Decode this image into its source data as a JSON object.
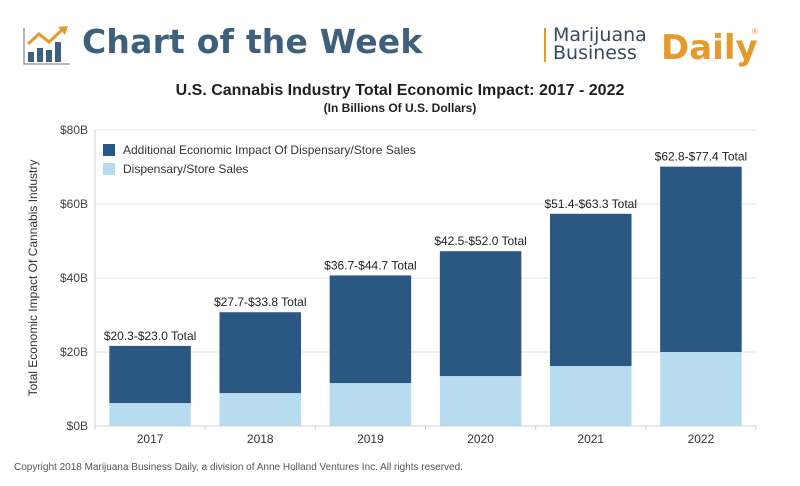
{
  "header": {
    "title": "Chart of the Week",
    "logo_icon": "rising-bar-chart-icon",
    "brand": {
      "line1": "Marijuana",
      "line2": "Business",
      "daily": "Daily",
      "registered": "®",
      "accent_color": "#e59a2c",
      "text_color": "#3a4a5e"
    }
  },
  "footer": {
    "copyright": "Copyright 2018 Marijuana Business Daily, a division of Anne Holland Ventures Inc. All rights reserved."
  },
  "chart_data": {
    "type": "bar",
    "stacked": true,
    "title": "U.S. Cannabis Industry Total Economic Impact: 2017 - 2022",
    "subtitle": "(In Billions Of U.S. Dollars)",
    "xlabel": "",
    "ylabel": "Total Economic Impact Of Cannabis Industry",
    "categories": [
      "2017",
      "2018",
      "2019",
      "2020",
      "2021",
      "2022"
    ],
    "ylim": [
      0,
      80
    ],
    "yticks": [
      0,
      20,
      40,
      60,
      80
    ],
    "ytick_labels": [
      "$0B",
      "$20B",
      "$40B",
      "$60B",
      "$80B"
    ],
    "grid": true,
    "legend_position": "top-left",
    "series": [
      {
        "name": "Dispensary/Store Sales",
        "color": "#b7dcf0",
        "values": [
          6.2,
          8.9,
          11.6,
          13.5,
          16.2,
          20.0
        ]
      },
      {
        "name": "Additional Economic Impact Of Dispensary/Store Sales",
        "color": "#2b5883",
        "values": [
          15.45,
          21.85,
          29.1,
          33.75,
          41.15,
          50.1
        ]
      }
    ],
    "totals": [
      21.65,
      30.75,
      40.7,
      47.25,
      57.35,
      70.1
    ],
    "data_labels": [
      "$20.3-$23.0 Total",
      "$27.7-$33.8 Total",
      "$36.7-$44.7 Total",
      "$42.5-$52.0 Total",
      "$51.4-$63.3 Total",
      "$62.8-$77.4 Total"
    ],
    "legend": [
      "Additional Economic Impact Of Dispensary/Store Sales",
      "Dispensary/Store Sales"
    ]
  }
}
